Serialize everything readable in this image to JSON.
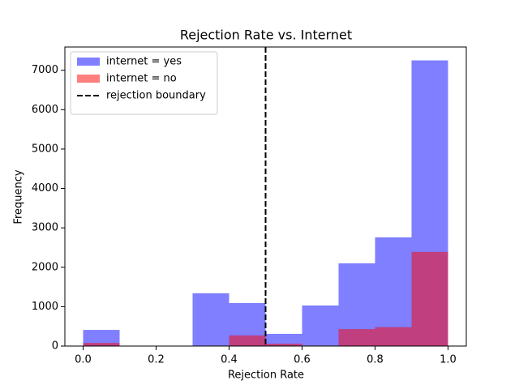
{
  "chart_data": {
    "type": "histogram",
    "title": "Rejection Rate vs. Internet",
    "xlabel": "Rejection Rate",
    "ylabel": "Frequency",
    "bins": [
      0.0,
      0.1,
      0.2,
      0.3,
      0.4,
      0.5,
      0.6,
      0.7,
      0.8,
      0.9,
      1.0
    ],
    "series": [
      {
        "name": "internet = yes",
        "color": "#0000ff",
        "alpha": 0.5,
        "values": [
          410,
          0,
          0,
          1340,
          1090,
          310,
          1030,
          2100,
          2760,
          7250
        ]
      },
      {
        "name": "internet = no",
        "color": "#ff0000",
        "alpha": 0.5,
        "values": [
          80,
          0,
          0,
          0,
          270,
          60,
          0,
          430,
          480,
          2390
        ]
      }
    ],
    "vline": {
      "x": 0.5,
      "label": "rejection boundary",
      "color": "#000000",
      "style": "dashed"
    },
    "xlim": [
      -0.05,
      1.05
    ],
    "xticks": [
      {
        "value": 0.0,
        "label": "0.0"
      },
      0.2,
      0.4,
      0.6,
      0.8,
      {
        "value": 1.0,
        "label": "1.0"
      }
    ],
    "ylim": [
      0,
      7590
    ],
    "yticks": [
      0,
      1000,
      2000,
      3000,
      4000,
      5000,
      6000,
      7000
    ],
    "legend": "upper left",
    "grid": false
  }
}
